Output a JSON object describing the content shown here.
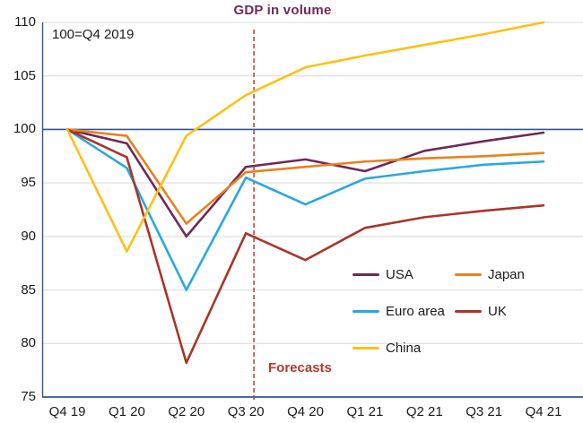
{
  "chart_data": {
    "type": "line",
    "title": "GDP in volume",
    "annotation": "100=Q4 2019",
    "forecast_label": "Forecasts",
    "categories": [
      "Q4 19",
      "Q1 20",
      "Q2 20",
      "Q3 20",
      "Q4 20",
      "Q1 21",
      "Q2 21",
      "Q3 21",
      "Q4 21"
    ],
    "series": [
      {
        "name": "USA",
        "color": "#6D2A58",
        "values": [
          100,
          98.7,
          90.0,
          96.5,
          97.2,
          96.1,
          98.0,
          98.9,
          99.7
        ]
      },
      {
        "name": "Japan",
        "color": "#E8821E",
        "values": [
          100,
          99.4,
          91.2,
          96.0,
          96.5,
          97.0,
          97.3,
          97.5,
          97.8
        ]
      },
      {
        "name": "Euro area",
        "color": "#29A8E0",
        "values": [
          100,
          96.4,
          85.0,
          95.5,
          93.0,
          95.4,
          96.1,
          96.7,
          97.0
        ]
      },
      {
        "name": "UK",
        "color": "#A93529",
        "values": [
          100,
          97.4,
          78.2,
          90.3,
          87.8,
          90.8,
          91.8,
          92.4,
          92.9
        ]
      },
      {
        "name": "China",
        "color": "#FFC013",
        "values": [
          100,
          88.6,
          99.4,
          103.2,
          105.8,
          106.9,
          107.9,
          108.9,
          110.0
        ]
      }
    ],
    "ylim": [
      75,
      110
    ],
    "y_ticks": [
      110,
      105,
      100,
      95,
      90,
      85,
      80,
      75
    ],
    "baseline_value": 100,
    "forecast_line_after_category": "Q3 20",
    "grid": true,
    "legend_position": "inside-bottom-right",
    "colors": {
      "axis": "#2F5496",
      "baseline": "#2F5496",
      "gridline": "#D9D9D9",
      "forecast_line": "#BE3B31",
      "title_text": "#722B5A",
      "forecast_text": "#B03A30",
      "tick_text": "#1A1A1A"
    }
  }
}
